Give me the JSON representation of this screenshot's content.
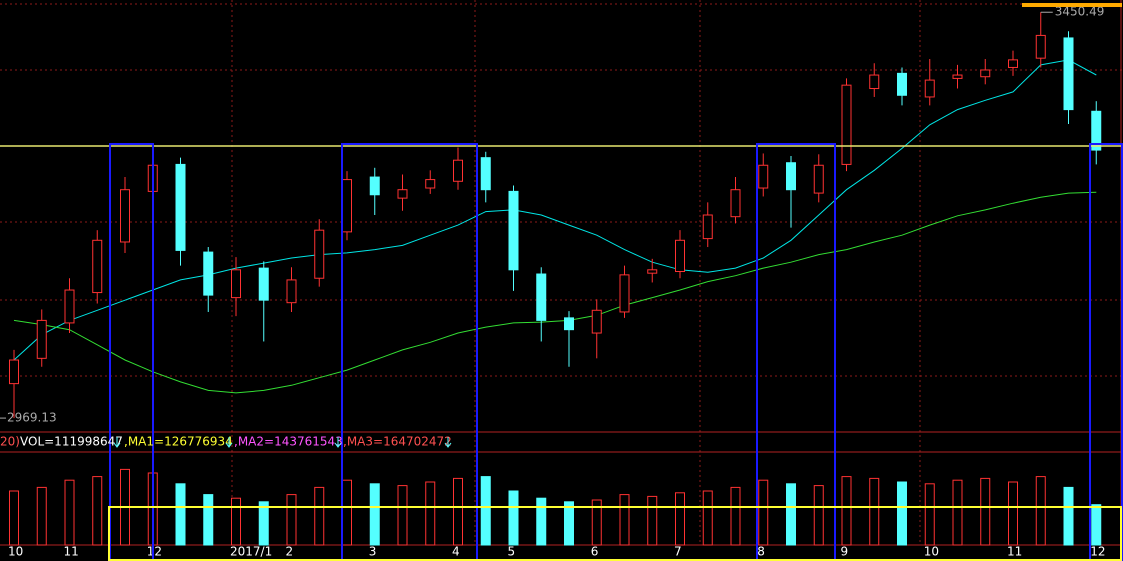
{
  "chart_data": {
    "type": "candlestick",
    "categories": [
      "10",
      null,
      "11",
      null,
      null,
      "12",
      null,
      null,
      "2017/1",
      null,
      "2",
      null,
      null,
      "3",
      null,
      null,
      "4",
      null,
      "5",
      null,
      null,
      "6",
      null,
      null,
      "7",
      null,
      null,
      "8",
      null,
      null,
      "9",
      null,
      null,
      "10",
      null,
      null,
      "11",
      null,
      null,
      "12"
    ],
    "open": [
      3010,
      3040,
      3082,
      3118,
      3178,
      3238,
      3270,
      3166,
      3112,
      3147,
      3106,
      3135,
      3190,
      3255,
      3230,
      3242,
      3250,
      3278,
      3238,
      3140,
      3088,
      3070,
      3095,
      3141,
      3143,
      3182,
      3208,
      3242,
      3272,
      3236,
      3270,
      3360,
      3378,
      3350,
      3372,
      3374,
      3385,
      3396,
      3420,
      3333
    ],
    "high": [
      3050,
      3098,
      3135,
      3192,
      3255,
      3285,
      3278,
      3172,
      3160,
      3155,
      3148,
      3205,
      3262,
      3266,
      3258,
      3263,
      3290,
      3285,
      3245,
      3148,
      3096,
      3110,
      3150,
      3158,
      3192,
      3225,
      3255,
      3283,
      3280,
      3282,
      3372,
      3390,
      3385,
      3395,
      3388,
      3395,
      3405,
      3450.49,
      3428,
      3345
    ],
    "low": [
      2969.13,
      3030,
      3070,
      3105,
      3165,
      3225,
      3150,
      3095,
      3090,
      3060,
      3095,
      3125,
      3180,
      3210,
      3215,
      3235,
      3240,
      3225,
      3120,
      3060,
      3030,
      3040,
      3088,
      3130,
      3135,
      3172,
      3200,
      3232,
      3195,
      3225,
      3262,
      3350,
      3340,
      3340,
      3360,
      3365,
      3375,
      3385,
      3318,
      3270
    ],
    "close": [
      3038,
      3085,
      3121,
      3180,
      3240,
      3269,
      3168,
      3115,
      3145,
      3109,
      3133,
      3192,
      3252,
      3234,
      3240,
      3252,
      3275,
      3240,
      3145,
      3085,
      3074,
      3097,
      3139,
      3145,
      3180,
      3210,
      3240,
      3269,
      3240,
      3269,
      3364,
      3376,
      3352,
      3370,
      3376,
      3382,
      3394,
      3423,
      3335,
      3287
    ],
    "up_color": "#ff3232",
    "down_color": "#54ffff",
    "ylim": [
      2955,
      3465
    ],
    "lines": [
      {
        "color": "#00e5e5",
        "values": [
          3038,
          3068,
          3085,
          3097,
          3109,
          3121,
          3133,
          3139,
          3147,
          3153,
          3159,
          3163,
          3165,
          3169,
          3174,
          3186,
          3198,
          3214,
          3216,
          3210,
          3198,
          3186,
          3169,
          3154,
          3145,
          3142,
          3147,
          3159,
          3180,
          3210,
          3240,
          3263,
          3289,
          3317,
          3335,
          3346,
          3356,
          3388,
          3394,
          3376
        ]
      },
      {
        "color": "#33dd33",
        "values": [
          3085,
          3080,
          3074,
          3056,
          3038,
          3024,
          3012,
          3002,
          2999,
          3002,
          3008,
          3017,
          3026,
          3038,
          3050,
          3059,
          3070,
          3077,
          3082,
          3083,
          3085,
          3091,
          3103,
          3112,
          3121,
          3131,
          3138,
          3147,
          3154,
          3163,
          3169,
          3178,
          3186,
          3198,
          3209,
          3216,
          3224,
          3231,
          3236,
          3237
        ]
      }
    ],
    "volume": {
      "header": [
        "20)",
        "VOL=111998647",
        ",MA1=126776934",
        ",MA2=143761543",
        ",MA3=164702472"
      ],
      "values": [
        150000000,
        160000000,
        180000000,
        190000000,
        210000000,
        200000000,
        170000000,
        140000000,
        130000000,
        120000000,
        140000000,
        160000000,
        180000000,
        170000000,
        165000000,
        175000000,
        185000000,
        190000000,
        150000000,
        130000000,
        120000000,
        125000000,
        140000000,
        135000000,
        145000000,
        150000000,
        160000000,
        180000000,
        170000000,
        165000000,
        190000000,
        185000000,
        175000000,
        170000000,
        180000000,
        185000000,
        175000000,
        190000000,
        160000000,
        111998647
      ],
      "ylim": [
        0,
        250000000
      ]
    }
  }
}
